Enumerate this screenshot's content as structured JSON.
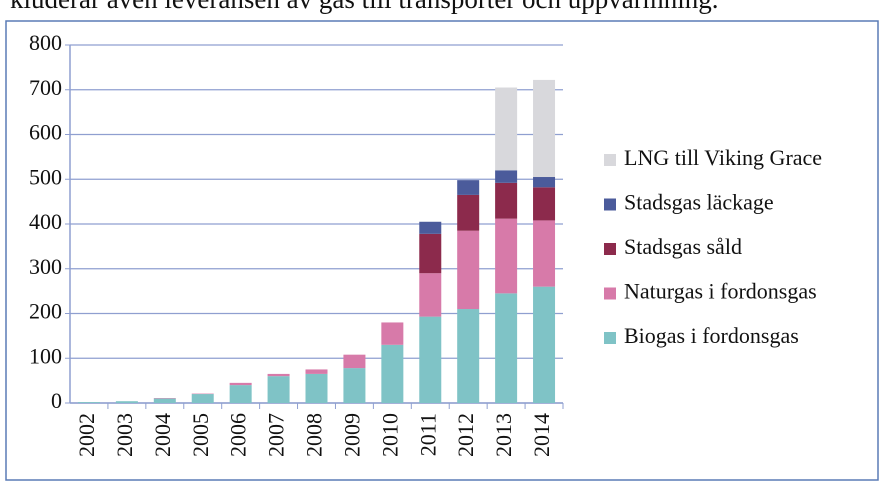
{
  "caption": "kluderar även leveransen av gas till transporter och uppvärmning.",
  "chart_data": {
    "type": "stacked_bar",
    "categories": [
      "2002",
      "2003",
      "2004",
      "2005",
      "2006",
      "2007",
      "2008",
      "2009",
      "2010",
      "2011",
      "2012",
      "2013",
      "2014"
    ],
    "series": [
      {
        "name": "Biogas i fordonsgas",
        "color": "#7fc3c6",
        "values": [
          2,
          4,
          10,
          20,
          40,
          60,
          65,
          78,
          130,
          193,
          210,
          245,
          260
        ]
      },
      {
        "name": "Naturgas i fordonsgas",
        "color": "#d77aa9",
        "values": [
          0,
          0,
          1,
          1,
          5,
          5,
          10,
          30,
          50,
          97,
          175,
          167,
          148
        ]
      },
      {
        "name": "Stadsgas såld",
        "color": "#8c2a4c",
        "values": [
          0,
          0,
          0,
          0,
          0,
          0,
          0,
          0,
          0,
          88,
          80,
          80,
          74
        ]
      },
      {
        "name": "Stadsgas läckage",
        "color": "#4b5b9b",
        "values": [
          0,
          0,
          0,
          0,
          0,
          0,
          0,
          0,
          0,
          27,
          33,
          28,
          23
        ]
      },
      {
        "name": "LNG till Viking Grace",
        "color": "#d8d8dc",
        "values": [
          0,
          0,
          0,
          0,
          0,
          0,
          0,
          0,
          0,
          0,
          0,
          185,
          217
        ]
      }
    ],
    "ylim": [
      0,
      800
    ],
    "yticks": [
      0,
      100,
      200,
      300,
      400,
      500,
      600,
      700,
      800
    ],
    "grid": true,
    "legend": "right"
  }
}
